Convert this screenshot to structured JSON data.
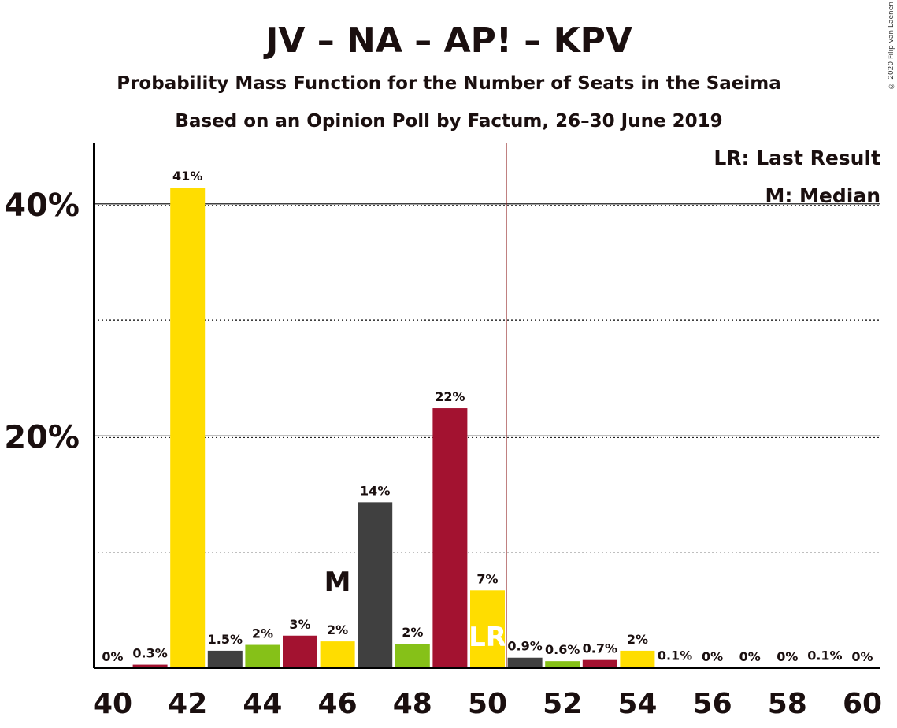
{
  "title": "JV – NA – AP! – KPV",
  "subtitle1": "Probability Mass Function for the Number of Seats in the Saeima",
  "subtitle2": "Based on an Opinion Poll by Factum, 26–30 June 2019",
  "copyright": "© 2020 Filip van Laenen",
  "legend": {
    "lr": "LR: Last Result",
    "m": "M: Median"
  },
  "colors": {
    "yellow": "#ffdd00",
    "crimson": "#a31230",
    "dark": "#404040",
    "green": "#86c118",
    "lrline": "#8b1a1a",
    "text": "#1a0f0f"
  },
  "chart_data": {
    "type": "bar",
    "x": [
      40,
      41,
      42,
      43,
      44,
      45,
      46,
      47,
      48,
      49,
      50,
      51,
      52,
      53,
      54,
      55,
      56,
      57,
      58,
      59,
      60
    ],
    "values": [
      0,
      0.3,
      41.4,
      1.5,
      2.0,
      2.8,
      2.3,
      14.3,
      2.1,
      22.4,
      6.7,
      0.9,
      0.6,
      0.7,
      1.5,
      0.1,
      0,
      0,
      0,
      0.1,
      0
    ],
    "labels": [
      "0%",
      "0.3%",
      "41%",
      "1.5%",
      "2%",
      "3%",
      "2%",
      "14%",
      "2%",
      "22%",
      "7%",
      "0.9%",
      "0.6%",
      "0.7%",
      "2%",
      "0.1%",
      "0%",
      "0%",
      "0%",
      "0.1%",
      "0%"
    ],
    "colors": [
      "crimson",
      "crimson",
      "yellow",
      "dark",
      "green",
      "crimson",
      "yellow",
      "dark",
      "green",
      "crimson",
      "yellow",
      "dark",
      "green",
      "crimson",
      "yellow",
      "dark",
      "green",
      "crimson",
      "yellow",
      "dark",
      "green"
    ],
    "xticks": [
      "40",
      "42",
      "44",
      "46",
      "48",
      "50",
      "52",
      "54",
      "56",
      "58",
      "60"
    ],
    "yticks": [
      "20%",
      "40%"
    ],
    "ylim": [
      0,
      45
    ],
    "median_seat": 46,
    "median_label": "M",
    "last_result_seat": 50,
    "last_result_label": "LR"
  }
}
